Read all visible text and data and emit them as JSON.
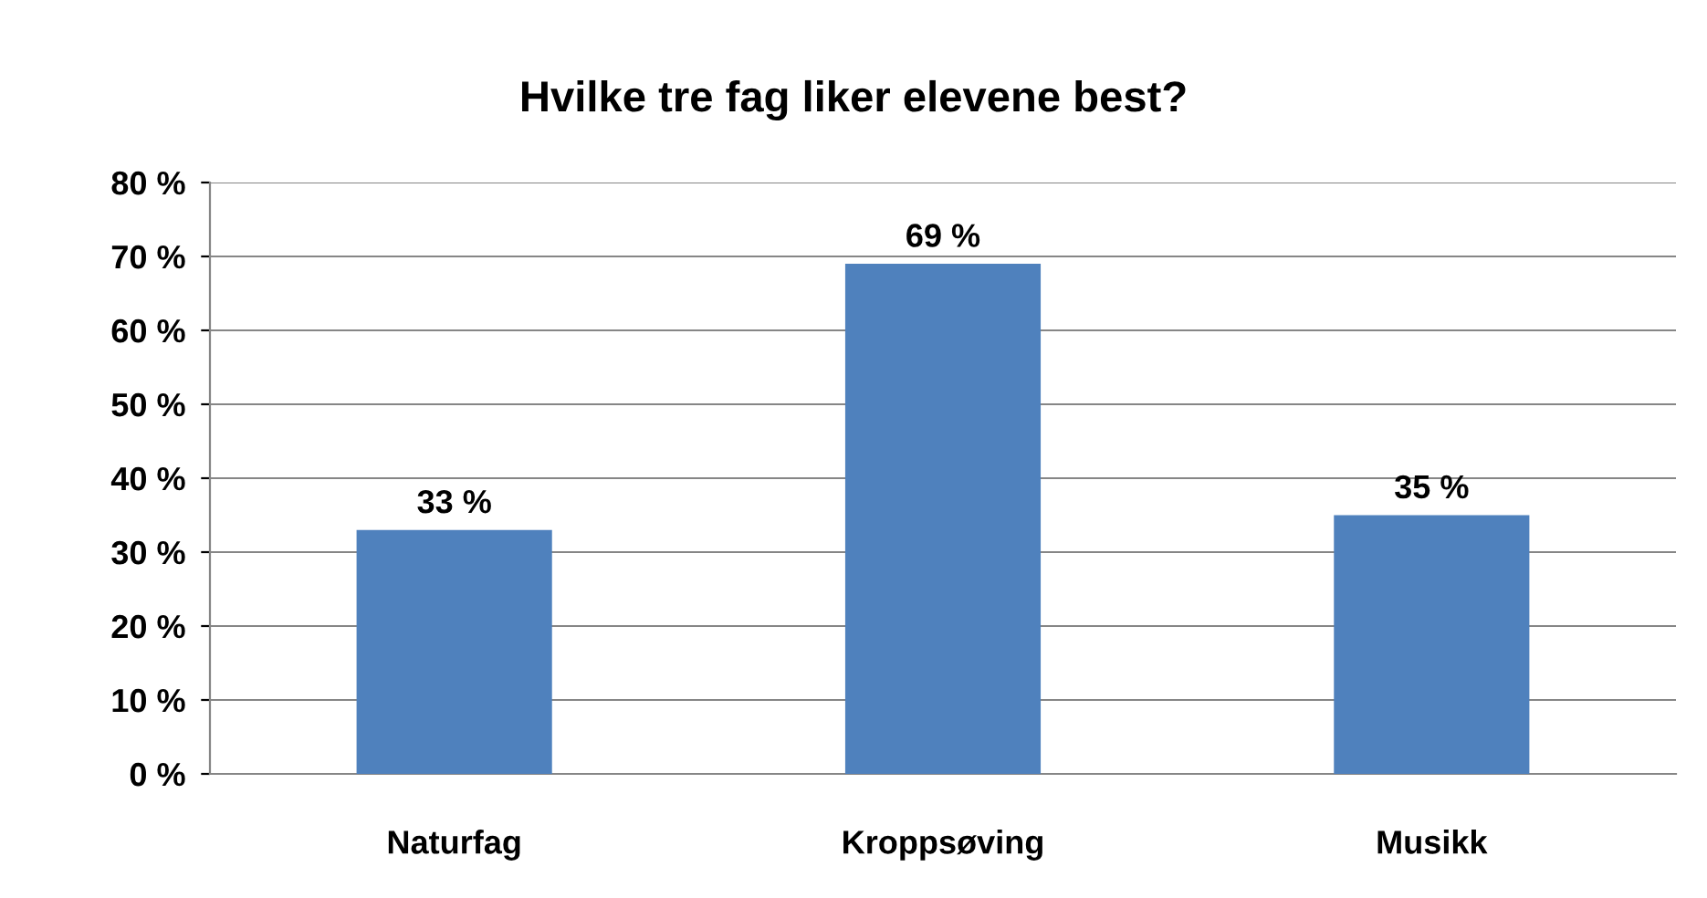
{
  "chart_data": {
    "type": "bar",
    "title": "Hvilke tre fag liker elevene best?",
    "categories": [
      "Naturfag",
      "Kroppsøving",
      "Musikk"
    ],
    "values": [
      33,
      69,
      35
    ],
    "value_labels": [
      "33 %",
      "69 %",
      "35 %"
    ],
    "color": "#4f81bd",
    "ylim": [
      0,
      80
    ],
    "yticks": [
      {
        "value": 0,
        "label": "0 %"
      },
      {
        "value": 10,
        "label": "10 %"
      },
      {
        "value": 20,
        "label": "20 %"
      },
      {
        "value": 30,
        "label": "30 %"
      },
      {
        "value": 40,
        "label": "40 %"
      },
      {
        "value": 50,
        "label": "50 %"
      },
      {
        "value": 60,
        "label": "60 %"
      },
      {
        "value": 70,
        "label": "70 %"
      },
      {
        "value": 80,
        "label": "80 %"
      }
    ],
    "grid": "y"
  }
}
